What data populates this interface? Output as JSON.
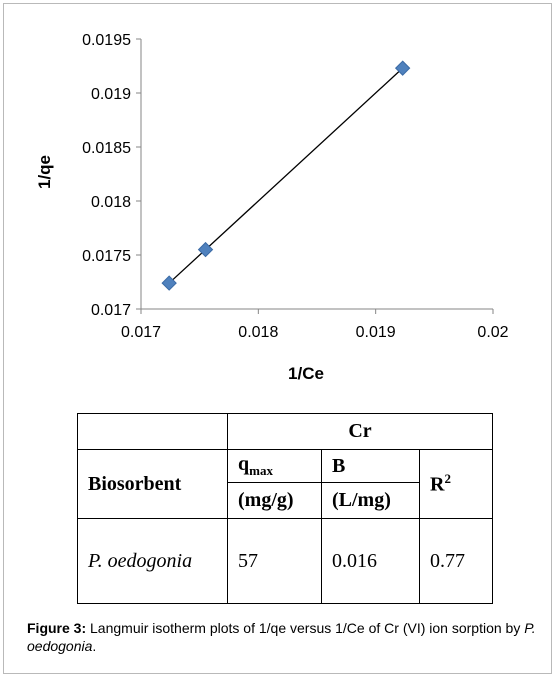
{
  "chart_data": {
    "type": "scatter",
    "xlabel": "1/Ce",
    "ylabel": "1/qe",
    "xlim": [
      0.017,
      0.02
    ],
    "ylim": [
      0.017,
      0.0195
    ],
    "x_ticks": [
      "0.017",
      "0.018",
      "0.019",
      "0.02"
    ],
    "y_ticks": [
      "0.017",
      "0.0175",
      "0.018",
      "0.0185",
      "0.019",
      "0.0195"
    ],
    "x_tick_values": [
      0.017,
      0.018,
      0.019,
      0.02
    ],
    "y_tick_values": [
      0.017,
      0.0175,
      0.018,
      0.0185,
      0.019,
      0.0195
    ],
    "grid": false,
    "legend": "none",
    "points": [
      {
        "x": 0.01724,
        "y": 0.01724
      },
      {
        "x": 0.01755,
        "y": 0.01755
      },
      {
        "x": 0.01923,
        "y": 0.01923
      }
    ],
    "trendline": {
      "x": [
        0.01724,
        0.01923
      ],
      "y": [
        0.01724,
        0.01923
      ]
    },
    "marker_color": "#4f81bd",
    "marker_edge_color": "#3a6aa5",
    "line_color": "#000000"
  },
  "table": {
    "group_header": "Cr",
    "col_biosorbent": "Biosorbent",
    "col_qmax_symbol": "q",
    "col_qmax_sub": "max",
    "col_qmax_unit": "(mg/g)",
    "col_b": "B",
    "col_b_unit": "(L/mg)",
    "col_r2_base": "R",
    "col_r2_sup": "2",
    "row": {
      "biosorbent": "P. oedogonia",
      "qmax": "57",
      "b": "0.016",
      "r2": "0.77"
    }
  },
  "caption": {
    "label": "Figure 3:",
    "text": "Langmuir isotherm plots of 1/qe versus 1/Ce of Cr (VI) ion sorption by",
    "species": "P. oedogonia",
    "end": "."
  }
}
